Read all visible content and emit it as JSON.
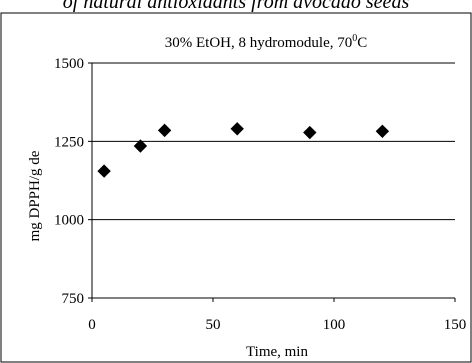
{
  "caption": "of natural antioxidants from avocado seeds",
  "chart_data": {
    "type": "scatter",
    "title": "30% EtOH, 8 hydromodule, 70",
    "title_superscript": "0",
    "title_suffix": "C",
    "xlabel": "Time, min",
    "ylabel": "mg DPPH/g de",
    "xlim": [
      0,
      150
    ],
    "ylim": [
      750,
      1500
    ],
    "x_ticks": [
      0,
      50,
      100,
      150
    ],
    "y_ticks": [
      750,
      1000,
      1250,
      1500
    ],
    "grid": "horizontal",
    "legend": "none",
    "marker": "diamond",
    "color": "#000000",
    "series": [
      {
        "x": [
          5,
          20,
          30,
          60,
          90,
          120
        ],
        "y": [
          1155,
          1235,
          1285,
          1290,
          1278,
          1282
        ]
      }
    ]
  }
}
